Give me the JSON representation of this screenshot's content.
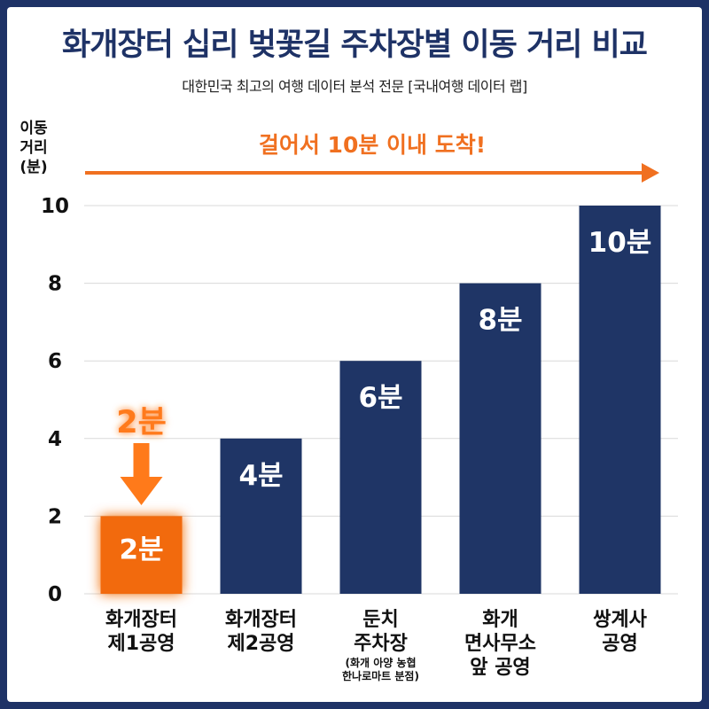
{
  "colors": {
    "background": "#1e3266",
    "bar": "#1f3566",
    "highlight_bar": "#f26a10",
    "accent": "#f07020",
    "grid": "#d9d9d9"
  },
  "chart_data": {
    "type": "bar",
    "title": "화개장터 십리 벚꽃길 주차장별 이동 거리 비교",
    "subtitle": "대한민국 최고의 여행 데이터 분석 전문 [국내여행 데이터 랩]",
    "ylabel": [
      "이동",
      "거리",
      "(분)"
    ],
    "ylim": [
      0,
      10
    ],
    "yticks": [
      0,
      2,
      4,
      6,
      8,
      10
    ],
    "grid": true,
    "banner": "걸어서 10분 이내 도착!",
    "highlight_index": 0,
    "highlight_callout": "2분",
    "categories": [
      {
        "lines": [
          "화개장터",
          "제1공영"
        ],
        "sub": []
      },
      {
        "lines": [
          "화개장터",
          "제2공영"
        ],
        "sub": []
      },
      {
        "lines": [
          "둔치",
          "주차장"
        ],
        "sub": [
          "(화개 아양 농협",
          "한나로마트 분점)"
        ]
      },
      {
        "lines": [
          "화개",
          "면사무소",
          "앞 공영"
        ],
        "sub": []
      },
      {
        "lines": [
          "쌍계사",
          "공영"
        ],
        "sub": []
      }
    ],
    "values": [
      2,
      4,
      6,
      8,
      10
    ],
    "value_labels": [
      "2분",
      "4분",
      "6분",
      "8분",
      "10분"
    ]
  }
}
